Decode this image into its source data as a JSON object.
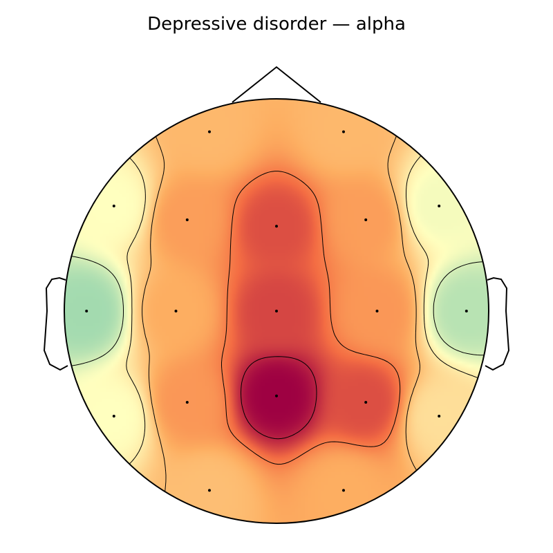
{
  "chart_data": {
    "type": "heatmap",
    "subtype": "eeg-topomap",
    "title": "Depressive disorder — alpha",
    "colormap": "Spectral_r",
    "colors": {
      "low": "#66c2a5",
      "mid_low": "#ffffbf",
      "mid": "#fdae61",
      "mid_high": "#f46d43",
      "high": "#9e0142"
    },
    "grid": false,
    "legend": "none",
    "value_range": [
      0.0,
      1.0
    ],
    "sensors": [
      {
        "x": -0.316,
        "y": 0.845,
        "v": 0.52
      },
      {
        "x": 0.316,
        "y": 0.845,
        "v": 0.52
      },
      {
        "x": -0.766,
        "y": 0.495,
        "v": 0.3
      },
      {
        "x": -0.421,
        "y": 0.43,
        "v": 0.6
      },
      {
        "x": 0.0,
        "y": 0.4,
        "v": 0.82
      },
      {
        "x": 0.421,
        "y": 0.43,
        "v": 0.6
      },
      {
        "x": 0.766,
        "y": 0.495,
        "v": 0.28
      },
      {
        "x": -0.895,
        "y": 0.0,
        "v": 0.12
      },
      {
        "x": -0.474,
        "y": 0.0,
        "v": 0.55
      },
      {
        "x": 0.0,
        "y": 0.0,
        "v": 0.84
      },
      {
        "x": 0.474,
        "y": 0.0,
        "v": 0.62
      },
      {
        "x": 0.895,
        "y": 0.0,
        "v": 0.16
      },
      {
        "x": -0.766,
        "y": -0.495,
        "v": 0.3
      },
      {
        "x": -0.421,
        "y": -0.43,
        "v": 0.62
      },
      {
        "x": 0.0,
        "y": -0.4,
        "v": 1.0
      },
      {
        "x": 0.421,
        "y": -0.43,
        "v": 0.82
      },
      {
        "x": 0.766,
        "y": -0.495,
        "v": 0.4
      },
      {
        "x": -0.316,
        "y": -0.845,
        "v": 0.5
      },
      {
        "x": 0.316,
        "y": -0.845,
        "v": 0.55
      }
    ],
    "contour_levels": [
      0.22,
      0.36,
      0.5,
      0.7,
      0.92
    ]
  }
}
